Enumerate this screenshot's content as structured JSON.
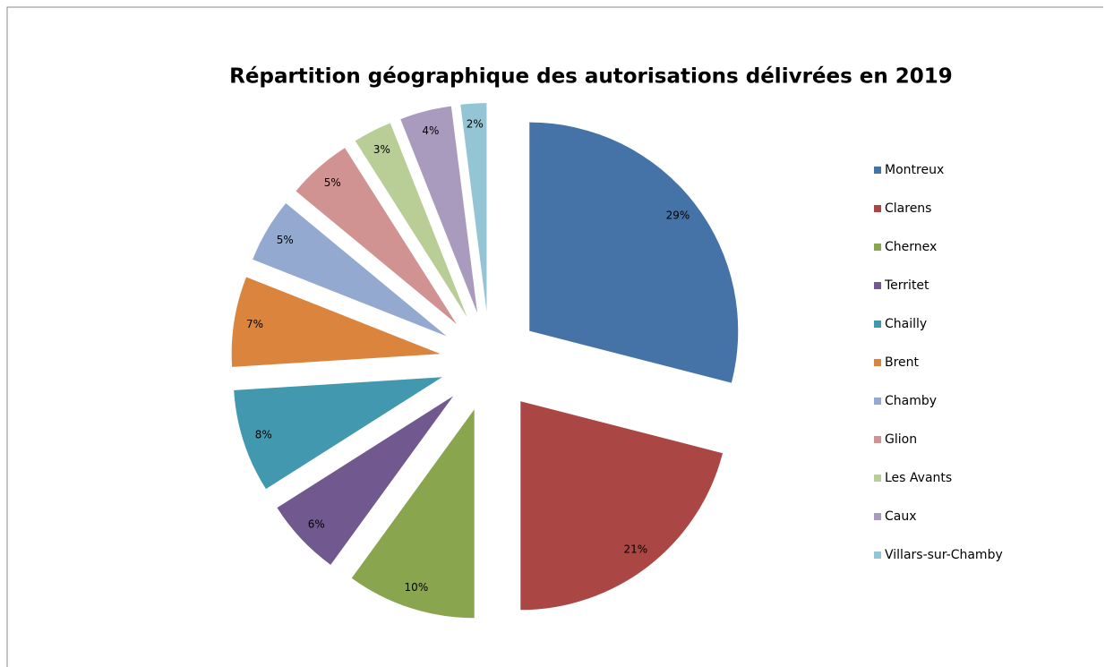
{
  "chart_data": {
    "type": "pie",
    "title": "Répartition géographique des autorisations délivrées en 2019",
    "categories": [
      "Montreux",
      "Clarens",
      "Chernex",
      "Territet",
      "Chailly",
      "Brent",
      "Chamby",
      "Glion",
      "Les Avants",
      "Caux",
      "Villars-sur-Chamby"
    ],
    "values": [
      29,
      21,
      10,
      6,
      8,
      7,
      5,
      5,
      3,
      4,
      2
    ],
    "value_labels": [
      "29%",
      "21%",
      "10%",
      "6%",
      "8%",
      "7%",
      "5%",
      "5%",
      "3%",
      "4%",
      "2%"
    ],
    "colors": [
      "#4572a7",
      "#aa4643",
      "#89a54e",
      "#71588f",
      "#4198af",
      "#db843d",
      "#93a9cf",
      "#d19392",
      "#b9cd96",
      "#a99bbd",
      "#93c5d5"
    ],
    "legend": "right"
  }
}
